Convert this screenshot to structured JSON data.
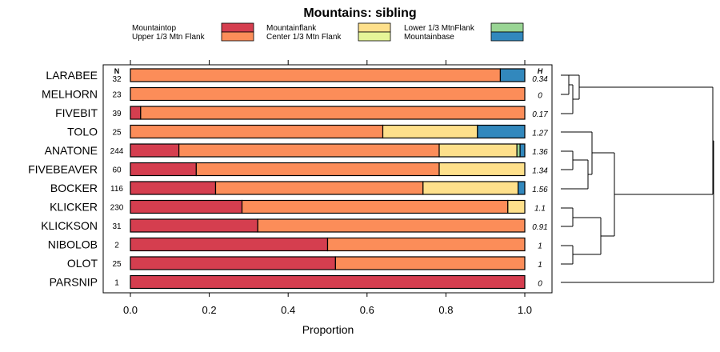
{
  "chart_data": {
    "type": "bar",
    "orientation": "horizontal",
    "stacked": true,
    "title": "Mountains: sibling",
    "xlabel": "Proportion",
    "ylabel": "",
    "xlim": [
      0,
      1
    ],
    "xticks": [
      "0.0",
      "0.2",
      "0.4",
      "0.6",
      "0.8",
      "1.0"
    ],
    "n_header": "N",
    "h_header": "H",
    "legend": [
      {
        "name": "Mountaintop",
        "color": "#d53e4f"
      },
      {
        "name": "Upper 1/3 Mtn Flank",
        "color": "#fc8d59"
      },
      {
        "name": "Mountainflank",
        "color": "#fee08b"
      },
      {
        "name": "Center 1/3 Mtn Flank",
        "color": "#e6f598"
      },
      {
        "name": "Lower 1/3 MtnFlank",
        "color": "#99d594"
      },
      {
        "name": "Mountainbase",
        "color": "#3288bd"
      }
    ],
    "categories": [
      "LARABEE",
      "MELHORN",
      "FIVEBIT",
      "TOLO",
      "ANATONE",
      "FIVEBEAVER",
      "BOCKER",
      "KLICKER",
      "KLICKSON",
      "NIBOLOB",
      "OLOT",
      "PARSNIP"
    ],
    "n": [
      "32",
      "23",
      "39",
      "25",
      "244",
      "60",
      "116",
      "230",
      "31",
      "2",
      "25",
      "1"
    ],
    "h": [
      "0.34",
      "0",
      "0.17",
      "1.27",
      "1.36",
      "1.34",
      "1.56",
      "1.1",
      "0.91",
      "1",
      "1",
      "0"
    ],
    "series": [
      {
        "name": "Mountaintop",
        "values": [
          0,
          0,
          0.026,
          0,
          0.123,
          0.167,
          0.216,
          0.283,
          0.323,
          0.5,
          0.52,
          1.0
        ]
      },
      {
        "name": "Upper 1/3 Mtn Flank",
        "values": [
          0.938,
          1.0,
          0.974,
          0.64,
          0.66,
          0.616,
          0.526,
          0.674,
          0.677,
          0.5,
          0.48,
          0
        ]
      },
      {
        "name": "Mountainflank",
        "values": [
          0,
          0,
          0,
          0.24,
          0.197,
          0.217,
          0.241,
          0.043,
          0,
          0,
          0,
          0
        ]
      },
      {
        "name": "Center 1/3 Mtn Flank",
        "values": [
          0,
          0,
          0,
          0,
          0,
          0,
          0,
          0,
          0,
          0,
          0,
          0
        ]
      },
      {
        "name": "Lower 1/3 MtnFlank",
        "values": [
          0,
          0,
          0,
          0,
          0.008,
          0,
          0,
          0,
          0,
          0,
          0,
          0
        ]
      },
      {
        "name": "Mountainbase",
        "values": [
          0.062,
          0,
          0,
          0.12,
          0.012,
          0,
          0.017,
          0,
          0,
          0,
          0,
          0
        ]
      }
    ]
  }
}
